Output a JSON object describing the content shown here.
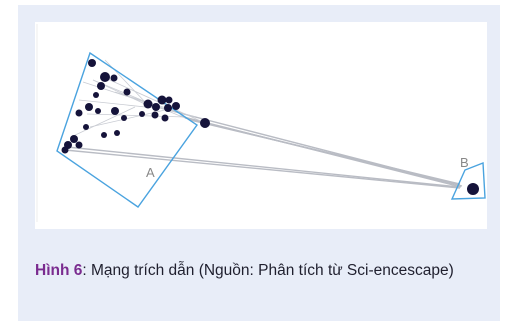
{
  "figure": {
    "label": "Hình 6",
    "caption_separator": ": ",
    "caption_text": "Mạng trích dẫn (Nguồn: Phân tích từ Sci-encescape)",
    "cluster_labels": {
      "a": "A",
      "b": "B"
    },
    "colors": {
      "panel_background": "#e8edf8",
      "figure_label": "#7a2b8f",
      "cluster_outline": "#4aa3df",
      "node": "#15133a",
      "edge": "#b9bcc4"
    }
  }
}
